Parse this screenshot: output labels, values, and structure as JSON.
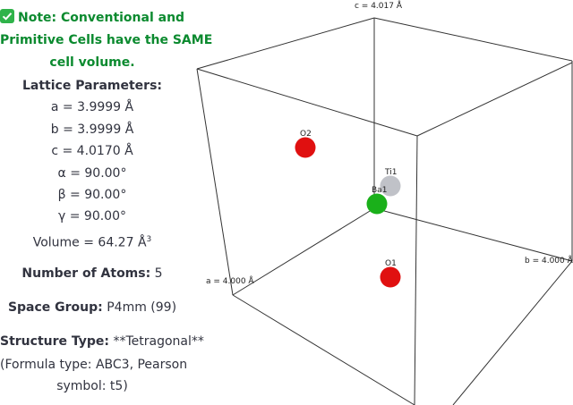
{
  "note": {
    "lines": [
      "Note: Conventional and",
      "Primitive Cells have the SAME",
      "cell volume."
    ]
  },
  "lattice": {
    "heading": "Lattice Parameters:",
    "lines": [
      "a = 3.9999 Å",
      "b = 3.9999 Å",
      "c = 4.0170 Å",
      "α = 90.00°",
      "β = 90.00°",
      "γ = 90.00°"
    ],
    "volume": "Volume = 64.27 Å",
    "volume_exponent": "3"
  },
  "atoms_count": {
    "label": "Number of Atoms:",
    "value": "5"
  },
  "space_group": {
    "label": "Space Group:",
    "value": "P4mm (99)"
  },
  "structure": {
    "label": "Structure Type:",
    "value": "**Tetragonal**",
    "detail": [
      "(Formula type: ABC3, Pearson",
      "symbol: t5)"
    ]
  },
  "viewer": {
    "axis_labels": {
      "c": "c = 4.017 Å",
      "b": "b = 4.000 Å",
      "a": "a = 4.000 Å"
    },
    "atoms": [
      {
        "label": "O2",
        "color": "#e01010"
      },
      {
        "label": "Ti1",
        "color": "#c0c2c8"
      },
      {
        "label": "Ba1",
        "color": "#1ab01a"
      },
      {
        "label": "O1",
        "color": "#e01010"
      }
    ]
  }
}
